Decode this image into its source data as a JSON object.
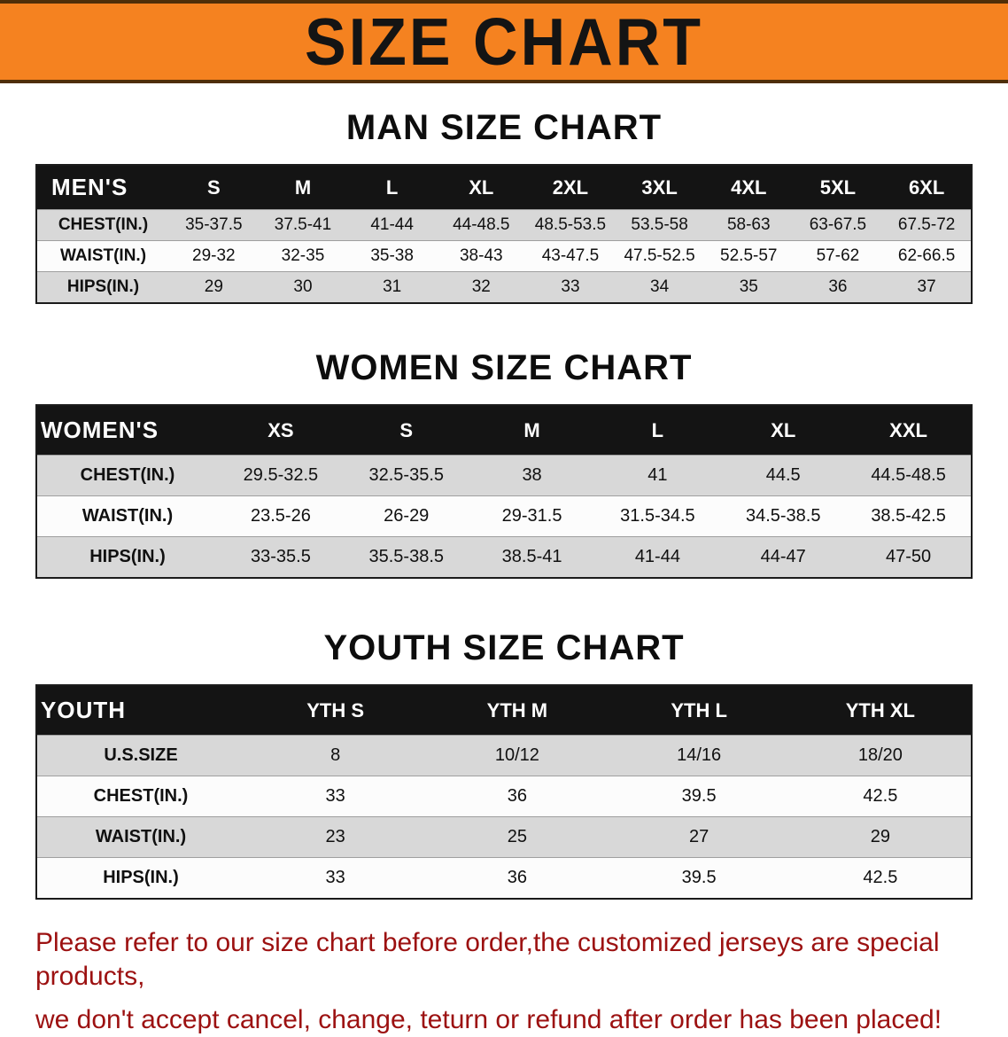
{
  "banner": {
    "title": "SIZE CHART"
  },
  "colors": {
    "banner_bg": "#f58220",
    "table_header_bg": "#141414",
    "row_shade": "#d8d8d8",
    "disclaimer_red": "#9c1111"
  },
  "sections": [
    {
      "id": "mens",
      "heading": "MAN SIZE CHART",
      "table": {
        "header": [
          "MEN'S",
          "S",
          "M",
          "L",
          "XL",
          "2XL",
          "3XL",
          "4XL",
          "5XL",
          "6XL"
        ],
        "rows": [
          [
            "CHEST(IN.)",
            "35-37.5",
            "37.5-41",
            "41-44",
            "44-48.5",
            "48.5-53.5",
            "53.5-58",
            "58-63",
            "63-67.5",
            "67.5-72"
          ],
          [
            "WAIST(IN.)",
            "29-32",
            "32-35",
            "35-38",
            "38-43",
            "43-47.5",
            "47.5-52.5",
            "52.5-57",
            "57-62",
            "62-66.5"
          ],
          [
            "HIPS(IN.)",
            "29",
            "30",
            "31",
            "32",
            "33",
            "34",
            "35",
            "36",
            "37"
          ]
        ]
      }
    },
    {
      "id": "womens",
      "heading": "WOMEN SIZE CHART",
      "table": {
        "header": [
          "WOMEN'S",
          "XS",
          "S",
          "M",
          "L",
          "XL",
          "XXL"
        ],
        "rows": [
          [
            "CHEST(IN.)",
            "29.5-32.5",
            "32.5-35.5",
            "38",
            "41",
            "44.5",
            "44.5-48.5"
          ],
          [
            "WAIST(IN.)",
            "23.5-26",
            "26-29",
            "29-31.5",
            "31.5-34.5",
            "34.5-38.5",
            "38.5-42.5"
          ],
          [
            "HIPS(IN.)",
            "33-35.5",
            "35.5-38.5",
            "38.5-41",
            "41-44",
            "44-47",
            "47-50"
          ]
        ]
      }
    },
    {
      "id": "youth",
      "heading": "YOUTH SIZE CHART",
      "table": {
        "header": [
          "YOUTH",
          "YTH S",
          "YTH M",
          "YTH L",
          "YTH XL"
        ],
        "rows": [
          [
            "U.S.SIZE",
            "8",
            "10/12",
            "14/16",
            "18/20"
          ],
          [
            "CHEST(IN.)",
            "33",
            "36",
            "39.5",
            "42.5"
          ],
          [
            "WAIST(IN.)",
            "23",
            "25",
            "27",
            "29"
          ],
          [
            "HIPS(IN.)",
            "33",
            "36",
            "39.5",
            "42.5"
          ]
        ]
      }
    }
  ],
  "disclaimer": {
    "line1": "Please refer to our size chart before order,the customized jerseys are special products,",
    "line2": "we don't accept cancel, change, teturn or refund after order has been placed!"
  }
}
